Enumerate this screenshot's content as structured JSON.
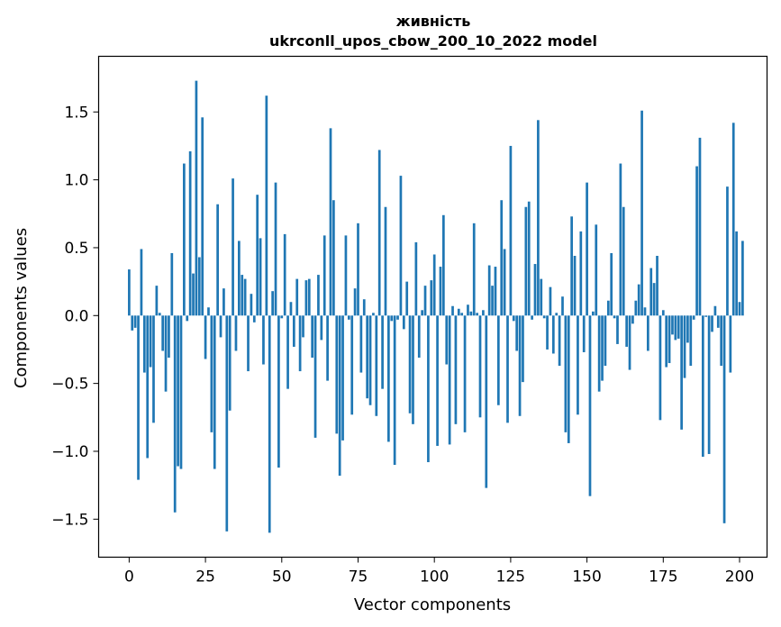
{
  "chart_data": {
    "type": "bar",
    "title": "живність",
    "subtitle": "ukrconll_upos_cbow_200_10_2022 model",
    "xlabel": "Vector components",
    "ylabel": "Components values",
    "xlim": [
      -10,
      209
    ],
    "ylim": [
      -1.78,
      1.91
    ],
    "x_ticks": [
      0,
      25,
      50,
      75,
      100,
      125,
      150,
      175,
      200
    ],
    "x_tick_labels": [
      "0",
      "25",
      "50",
      "75",
      "100",
      "125",
      "150",
      "175",
      "200"
    ],
    "y_ticks": [
      -1.5,
      -1.0,
      -0.5,
      0.0,
      0.5,
      1.0,
      1.5
    ],
    "y_tick_labels": [
      "−1.5",
      "−1.0",
      "−0.5",
      "0.0",
      "0.5",
      "1.0",
      "1.5"
    ],
    "grid": false,
    "bar_color": "#1f77b4",
    "values": [
      0.34,
      -0.11,
      -0.09,
      -1.21,
      0.49,
      -0.42,
      -1.05,
      -0.38,
      -0.79,
      0.22,
      0.02,
      -0.26,
      -0.56,
      -0.31,
      0.46,
      -1.45,
      -1.11,
      -1.13,
      1.12,
      -0.04,
      1.21,
      0.31,
      1.73,
      0.43,
      1.46,
      -0.32,
      0.06,
      -0.86,
      -1.13,
      0.82,
      -0.16,
      0.2,
      -1.59,
      -0.7,
      1.01,
      -0.26,
      0.55,
      0.3,
      0.27,
      -0.41,
      0.16,
      -0.05,
      0.89,
      0.57,
      -0.36,
      1.62,
      -1.6,
      0.18,
      0.98,
      -1.12,
      -0.02,
      0.6,
      -0.54,
      0.1,
      -0.23,
      0.27,
      -0.41,
      -0.16,
      0.26,
      0.27,
      -0.31,
      -0.9,
      0.3,
      -0.18,
      0.59,
      -0.48,
      1.38,
      0.85,
      -0.87,
      -1.18,
      -0.92,
      0.59,
      -0.03,
      -0.73,
      0.2,
      0.68,
      -0.42,
      0.12,
      -0.61,
      -0.66,
      0.02,
      -0.74,
      1.22,
      -0.54,
      0.8,
      -0.93,
      -0.04,
      -1.1,
      -0.03,
      1.03,
      -0.1,
      0.25,
      -0.72,
      -0.8,
      0.54,
      -0.31,
      0.04,
      0.22,
      -1.08,
      0.26,
      0.45,
      -0.96,
      0.36,
      0.74,
      -0.36,
      -0.95,
      0.07,
      -0.8,
      0.05,
      0.02,
      -0.86,
      0.08,
      0.03,
      0.68,
      0.02,
      -0.75,
      0.04,
      -1.27,
      0.37,
      0.22,
      0.36,
      -0.66,
      0.85,
      0.49,
      -0.79,
      1.25,
      -0.04,
      -0.26,
      -0.74,
      -0.49,
      0.8,
      0.84,
      -0.03,
      0.38,
      1.44,
      0.27,
      -0.02,
      -0.25,
      0.21,
      -0.28,
      0.02,
      -0.37,
      0.14,
      -0.86,
      -0.94,
      0.73,
      0.44,
      -0.73,
      0.62,
      -0.27,
      0.98,
      -1.33,
      0.03,
      0.67,
      -0.56,
      -0.48,
      -0.37,
      0.11,
      0.46,
      -0.02,
      -0.21,
      1.12,
      0.8,
      -0.23,
      -0.4,
      -0.06,
      0.11,
      0.23,
      1.51,
      0.06,
      -0.26,
      0.35,
      0.24,
      0.44,
      -0.77,
      0.04,
      -0.38,
      -0.35,
      -0.14,
      -0.18,
      -0.17,
      -0.84,
      -0.46,
      -0.2,
      -0.37,
      -0.03,
      1.1,
      1.31,
      -1.04,
      -0.01,
      -1.02,
      -0.12,
      0.07,
      -0.09,
      -0.37,
      -1.53,
      0.95,
      -0.42,
      1.42,
      0.62,
      0.1,
      0.55
    ]
  }
}
